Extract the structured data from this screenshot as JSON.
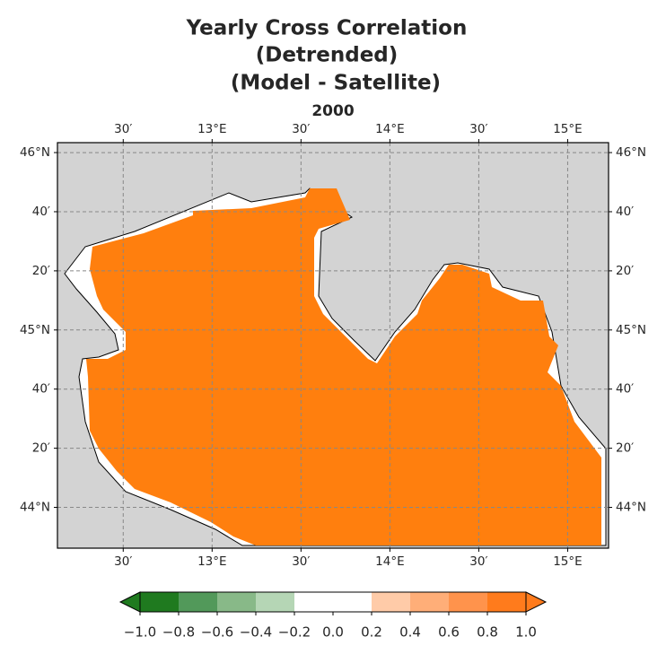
{
  "title_lines": [
    "Yearly Cross Correlation",
    "(Detrended)",
    "(Model - Satellite)"
  ],
  "subtitle": "2000",
  "map": {
    "lon_lim": [
      12.13,
      15.23
    ],
    "lat_lim": [
      43.77,
      46.056
    ],
    "lon_ticks": [
      {
        "value": 12.5,
        "label": "30′"
      },
      {
        "value": 13,
        "label": "13°E"
      },
      {
        "value": 13.5,
        "label": "30′"
      },
      {
        "value": 14,
        "label": "14°E"
      },
      {
        "value": 14.5,
        "label": "30′"
      },
      {
        "value": 15,
        "label": "15°E"
      }
    ],
    "lat_ticks": [
      {
        "value": 46,
        "label": "46°N"
      },
      {
        "value": 45.6667,
        "label": "40′"
      },
      {
        "value": 45.3333,
        "label": "20′"
      },
      {
        "value": 45,
        "label": "45°N"
      },
      {
        "value": 44.6667,
        "label": "40′"
      },
      {
        "value": 44.3333,
        "label": "20′"
      },
      {
        "value": 44,
        "label": "44°N"
      }
    ],
    "grid": true
  },
  "colorbar": {
    "lim": [
      -1,
      1
    ],
    "ticks": [
      {
        "value": -1,
        "label": "−1.0"
      },
      {
        "value": -0.8,
        "label": "−0.8"
      },
      {
        "value": -0.6,
        "label": "−0.6"
      },
      {
        "value": -0.4,
        "label": "−0.4"
      },
      {
        "value": -0.2,
        "label": "−0.2"
      },
      {
        "value": 0,
        "label": "0.0"
      },
      {
        "value": 0.2,
        "label": "0.2"
      },
      {
        "value": 0.4,
        "label": "0.4"
      },
      {
        "value": 0.6,
        "label": "0.6"
      },
      {
        "value": 0.8,
        "label": "0.8"
      },
      {
        "value": 1,
        "label": "1.0"
      }
    ],
    "colors": [
      "#1f7a1f",
      "#52995a",
      "#88b988",
      "#b5d6b5",
      "#ffffff",
      "#ffffff",
      "#ffcba8",
      "#ffae78",
      "#ff934c",
      "#ff7b1c"
    ],
    "extend_colors": [
      "#1f7a1f",
      "#ff7b1c"
    ]
  }
}
